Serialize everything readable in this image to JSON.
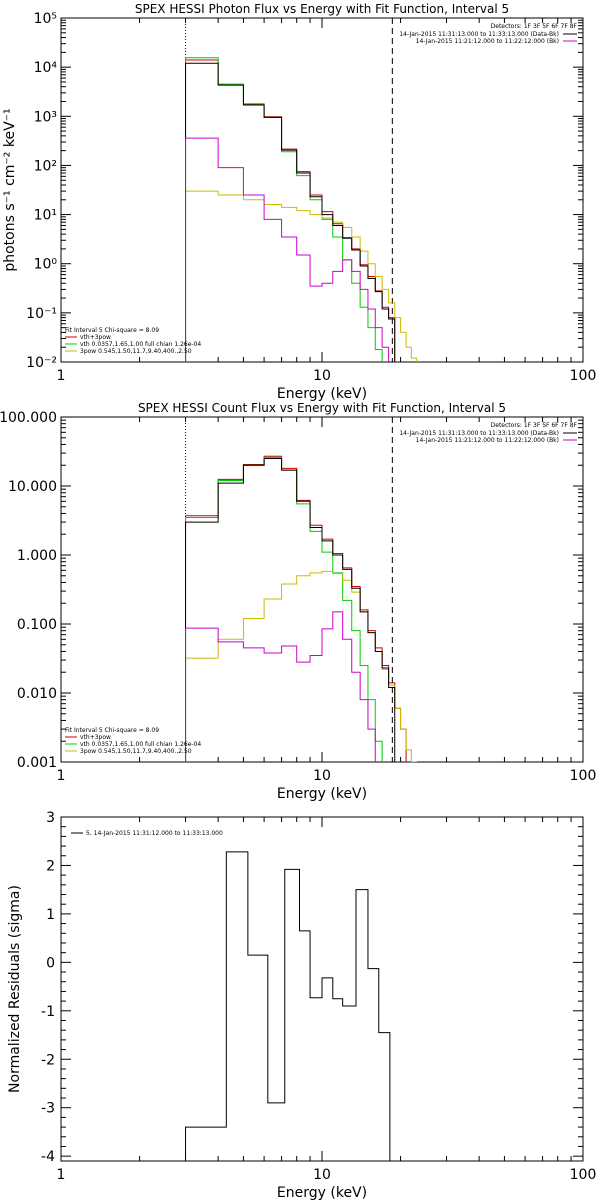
{
  "chart_data": [
    {
      "type": "line",
      "title": "SPEX HESSI Photon Flux vs Energy with Fit Function, Interval 5",
      "xlabel": "Energy (keV)",
      "ylabel": "photons s⁻¹ cm⁻² keV⁻¹",
      "xscale": "log",
      "yscale": "log",
      "xlim": [
        1,
        100
      ],
      "ylim": [
        0.01,
        100000
      ],
      "x_ticks": [
        "1",
        "10",
        "100"
      ],
      "y_ticks": [
        "10⁻²",
        "10⁻¹",
        "10⁰",
        "10¹",
        "10²",
        "10³",
        "10⁴",
        "10⁵"
      ],
      "bin_edges": [
        3.0,
        4.0,
        5.0,
        6.0,
        7.0,
        8.0,
        9.0,
        10.0,
        11.0,
        12.0,
        13.0,
        14.0,
        15.0,
        16.0,
        17.0,
        18.0,
        19.0,
        20.0,
        21.0,
        22.0,
        23.0
      ],
      "marker_lines": [
        {
          "x": 3.0,
          "style": "dotted"
        },
        {
          "x": 18.6,
          "style": "dashed"
        }
      ],
      "legend_top_right": {
        "header": "Detectors: 1F 3F 5F 6F 7F 8F",
        "entries": [
          {
            "text": "14-Jan-2015 11:31:13.000 to 11:33:13.000 (Data-Bk)",
            "color": "#000000"
          },
          {
            "text": "14-Jan-2015 11:21:12.000 to 11:22:12.000 (Bk)",
            "color": "#cc00cc"
          }
        ]
      },
      "legend_bottom_left": {
        "header": "Fit Interval 5   Chi-square = 8.09",
        "entries": [
          {
            "text": "vth+3pow",
            "color": "#cc0000"
          },
          {
            "text": "vth 0.0357,1.65,1.00  full chian 1.26e-04",
            "color": "#00cc00"
          },
          {
            "text": "3pow 0.545,1.50,11.7,9.40,400.,2.50",
            "color": "#ccbb00"
          }
        ]
      },
      "series": [
        {
          "name": "vth+3pow",
          "color": "#cc0000",
          "values": [
            14000,
            4400,
            1750,
            980,
            215,
            75,
            25,
            11.5,
            6.5,
            3.4,
            2.0,
            0.95,
            0.55,
            0.28,
            0.13,
            0.08,
            null,
            null,
            null,
            null
          ]
        },
        {
          "name": "vth 0.0357,1.65,1.00  full chian 1.26e-04",
          "color": "#00cc00",
          "values": [
            15500,
            4500,
            1800,
            950,
            190,
            62,
            20,
            8,
            3.5,
            1.2,
            0.4,
            0.13,
            0.05,
            0.018,
            0.005,
            null,
            null,
            null,
            null,
            null
          ]
        },
        {
          "name": "3pow 0.545,1.50,11.7,9.40,400.,2.50",
          "color": "#ccbb00",
          "values": [
            30,
            25,
            20,
            16,
            14,
            12,
            10,
            8.5,
            7,
            5.5,
            3.5,
            1.8,
            1.0,
            0.55,
            0.3,
            0.16,
            0.08,
            0.04,
            0.02,
            0.012
          ]
        },
        {
          "name": "Data-Bk",
          "color": "#000000",
          "values": [
            12000,
            4300,
            1700,
            950,
            205,
            70,
            23,
            10,
            6,
            3.3,
            1.9,
            0.9,
            0.5,
            0.27,
            0.12,
            0.075,
            null,
            null,
            null,
            null
          ]
        },
        {
          "name": "Bk",
          "color": "#cc00cc",
          "values": [
            360,
            90,
            25,
            8,
            3.5,
            1.5,
            0.35,
            0.4,
            0.7,
            1.2,
            0.7,
            0.3,
            0.12,
            0.05,
            0.02,
            null,
            null,
            null,
            null,
            null
          ]
        }
      ]
    },
    {
      "type": "line",
      "title": "SPEX HESSI Count Flux vs Energy with Fit Function, Interval 5",
      "xlabel": "Energy (keV)",
      "ylabel": "",
      "xscale": "log",
      "yscale": "log",
      "xlim": [
        1,
        100
      ],
      "ylim": [
        0.001,
        100
      ],
      "x_ticks": [
        "1",
        "10",
        "100"
      ],
      "y_ticks": [
        "0.001",
        "0.010",
        "0.100",
        "1.000",
        "10.000",
        "100.000"
      ],
      "bin_edges": [
        3.0,
        4.0,
        5.0,
        6.0,
        7.0,
        8.0,
        9.0,
        10.0,
        11.0,
        12.0,
        13.0,
        14.0,
        15.0,
        16.0,
        17.0,
        18.0,
        19.0,
        20.0,
        21.0,
        22.0,
        23.0
      ],
      "marker_lines": [
        {
          "x": 3.0,
          "style": "dotted"
        },
        {
          "x": 18.6,
          "style": "dashed"
        }
      ],
      "legend_top_right": {
        "header": "Detectors: 1F 3F 5F 6F 7F 8F",
        "entries": [
          {
            "text": "14-Jan-2015 11:31:13.000 to 11:33:13.000 (Data-Bk)",
            "color": "#000000"
          },
          {
            "text": "14-Jan-2015 11:21:12.000 to 11:22:12.000 (Bk)",
            "color": "#cc00cc"
          }
        ]
      },
      "legend_bottom_left": {
        "header": "Fit Interval 5   Chi-square = 8.09",
        "entries": [
          {
            "text": "vth+3pow",
            "color": "#cc0000"
          },
          {
            "text": "vth 0.0357,1.65,1.00  full chian 1.26e-04",
            "color": "#00cc00"
          },
          {
            "text": "3pow 0.545,1.50,11.7,9.40,400.,2.50",
            "color": "#ccbb00"
          }
        ]
      },
      "series": [
        {
          "name": "vth+3pow",
          "color": "#cc0000",
          "values": [
            3.7,
            12.5,
            20.5,
            27,
            18,
            6.2,
            2.7,
            1.7,
            1.05,
            0.65,
            0.35,
            0.16,
            0.08,
            0.045,
            0.025,
            0.014,
            0.006,
            0.003,
            null,
            null
          ]
        },
        {
          "name": "vth 0.0357,1.65,1.00  full chian 1.26e-04",
          "color": "#00cc00",
          "values": [
            3.5,
            12,
            20,
            26,
            17,
            5.5,
            2.2,
            1.1,
            0.55,
            0.22,
            0.08,
            0.025,
            0.008,
            0.002,
            0.0005,
            null,
            null,
            null,
            null,
            null
          ]
        },
        {
          "name": "3pow 0.545,1.50,11.7,9.40,400.,2.50",
          "color": "#ccbb00",
          "values": [
            0.032,
            0.06,
            0.12,
            0.23,
            0.38,
            0.5,
            0.55,
            0.58,
            0.54,
            0.43,
            0.29,
            0.15,
            0.075,
            0.04,
            0.022,
            0.013,
            0.006,
            0.003,
            0.0015,
            0.001
          ]
        },
        {
          "name": "Data-Bk",
          "color": "#000000",
          "values": [
            3.0,
            11,
            20,
            25,
            17,
            6,
            2.5,
            1.6,
            1.0,
            0.62,
            0.33,
            0.15,
            0.075,
            0.04,
            0.023,
            0.012,
            null,
            null,
            null,
            null
          ]
        },
        {
          "name": "Bk",
          "color": "#cc00cc",
          "values": [
            0.087,
            0.055,
            0.045,
            0.038,
            0.048,
            0.028,
            0.035,
            0.085,
            0.15,
            0.06,
            0.02,
            0.008,
            0.003,
            null,
            null,
            null,
            null,
            null,
            null,
            null
          ]
        }
      ]
    },
    {
      "type": "line",
      "title": "",
      "xlabel": "Energy (keV)",
      "ylabel": "Normalized Residuals (sigma)",
      "xscale": "log",
      "yscale": "linear",
      "xlim": [
        1,
        100
      ],
      "ylim": [
        -4.1,
        3.0
      ],
      "x_ticks": [
        "1",
        "10",
        "100"
      ],
      "y_ticks": [
        "-4",
        "-3",
        "-2",
        "-1",
        "0",
        "1",
        "2",
        "3"
      ],
      "legend_top_left": {
        "entries": [
          {
            "text": "5, 14-Jan-2015 11:31:12.000 to 11:33:13.000",
            "color": "#000000"
          }
        ]
      },
      "series": [
        {
          "name": "5, 14-Jan-2015 11:31:12.000 to 11:33:13.000",
          "color": "#000000",
          "bin_edges": [
            3.0,
            4.3,
            5.2,
            6.2,
            7.2,
            8.2,
            9.0,
            10.0,
            11.0,
            12.0,
            13.5,
            15.0,
            16.5,
            18.2
          ],
          "values": [
            -3.4,
            2.28,
            0.15,
            -2.9,
            1.92,
            0.65,
            -0.73,
            -0.32,
            -0.75,
            -0.9,
            1.5,
            -0.13,
            -1.45
          ]
        }
      ]
    }
  ]
}
